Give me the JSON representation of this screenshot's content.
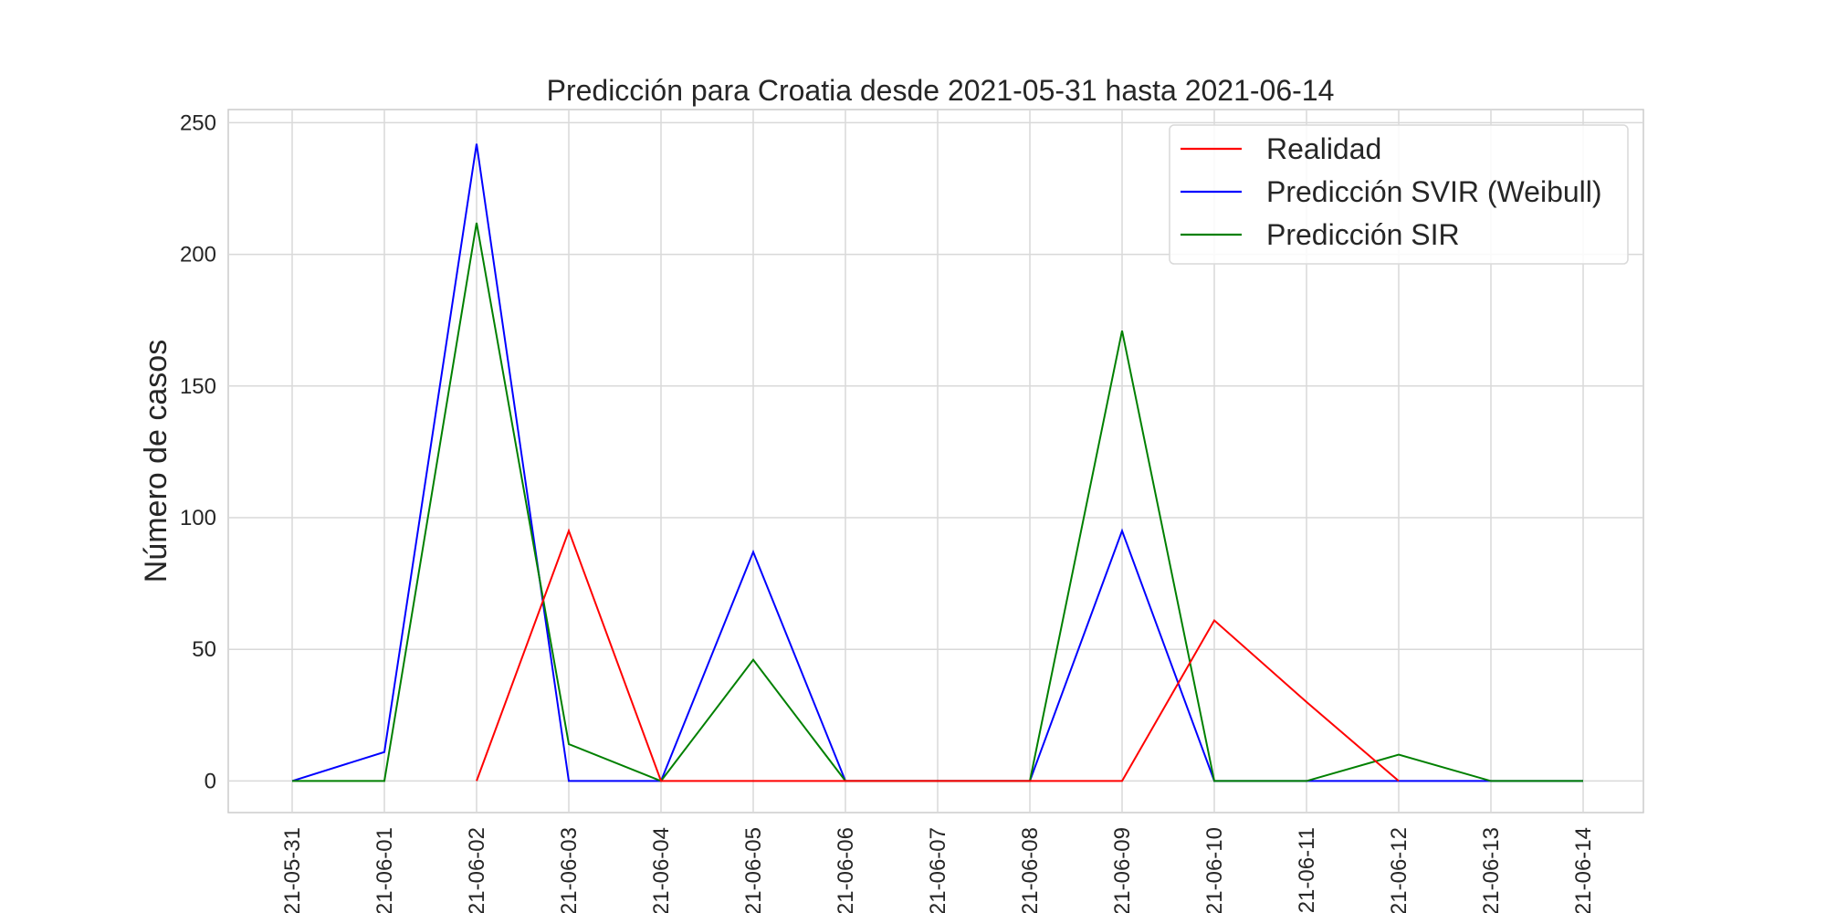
{
  "chart_data": {
    "type": "line",
    "title": "Predicción para Croatia desde 2021-05-31 hasta 2021-06-14",
    "xlabel": "",
    "ylabel": "Número de casos",
    "x": [
      "2021-05-31",
      "2021-06-01",
      "2021-06-02",
      "2021-06-03",
      "2021-06-04",
      "2021-06-05",
      "2021-06-06",
      "2021-06-07",
      "2021-06-08",
      "2021-06-09",
      "2021-06-10",
      "2021-06-11",
      "2021-06-12",
      "2021-06-13",
      "2021-06-14"
    ],
    "x_tick_labels": [
      "21-05-31",
      "21-06-01",
      "21-06-02",
      "21-06-03",
      "21-06-04",
      "21-06-05",
      "21-06-06",
      "21-06-07",
      "21-06-08",
      "21-06-09",
      "21-06-10",
      "21-06-11",
      "21-06-12",
      "21-06-13",
      "21-06-14"
    ],
    "ylim": [
      -12,
      255
    ],
    "y_ticks": [
      0,
      50,
      100,
      150,
      200,
      250
    ],
    "grid": true,
    "legend_position": "top-right",
    "series": [
      {
        "name": "Realidad",
        "color": "#ff0000",
        "values": [
          null,
          null,
          0,
          95,
          0,
          0,
          0,
          0,
          0,
          0,
          61,
          30,
          0,
          null,
          null
        ]
      },
      {
        "name": "Predicción SVIR (Weibull)",
        "color": "#0000ff",
        "values": [
          0,
          11,
          242,
          0,
          0,
          87,
          0,
          0,
          0,
          95,
          0,
          0,
          0,
          0,
          0
        ]
      },
      {
        "name": "Predicción SIR",
        "color": "#008000",
        "values": [
          0,
          0,
          212,
          14,
          0,
          46,
          0,
          0,
          0,
          171,
          0,
          0,
          10,
          0,
          0
        ]
      }
    ]
  }
}
